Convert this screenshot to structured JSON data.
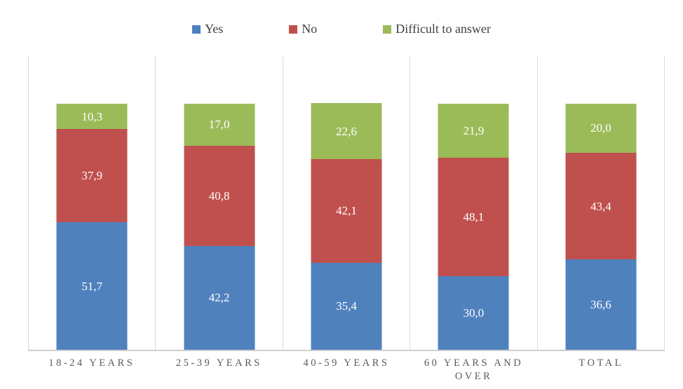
{
  "chart_data": {
    "type": "bar",
    "stacked": true,
    "title": "",
    "xlabel": "",
    "ylabel": "",
    "ylim": [
      0,
      100
    ],
    "legend_position": "top",
    "grid": "vertical-category-separators",
    "decimal_separator": ",",
    "value_label_color": "#FFFFFF",
    "axis_label_color": "#595959",
    "separator_color": "#DCDCDC",
    "categories": [
      "18-24 YEARS",
      "25-39 YEARS",
      "40-59 YEARS",
      "60 YEARS AND OVER",
      "TOTAL"
    ],
    "series": [
      {
        "name": "Yes",
        "color": "#4F81BD",
        "values": [
          51.7,
          42.2,
          35.4,
          30.0,
          36.6
        ],
        "labels": [
          "51,7",
          "42,2",
          "35,4",
          "30,0",
          "36,6"
        ]
      },
      {
        "name": "No",
        "color": "#C0504D",
        "values": [
          37.9,
          40.8,
          42.1,
          48.1,
          43.4
        ],
        "labels": [
          "37,9",
          "40,8",
          "42,1",
          "48,1",
          "43,4"
        ]
      },
      {
        "name": "Difficult to answer",
        "color": "#9BBB59",
        "values": [
          10.3,
          17.0,
          22.6,
          21.9,
          20.0
        ],
        "labels": [
          "10,3",
          "17,0",
          "22,6",
          "21,9",
          "20,0"
        ]
      }
    ]
  }
}
